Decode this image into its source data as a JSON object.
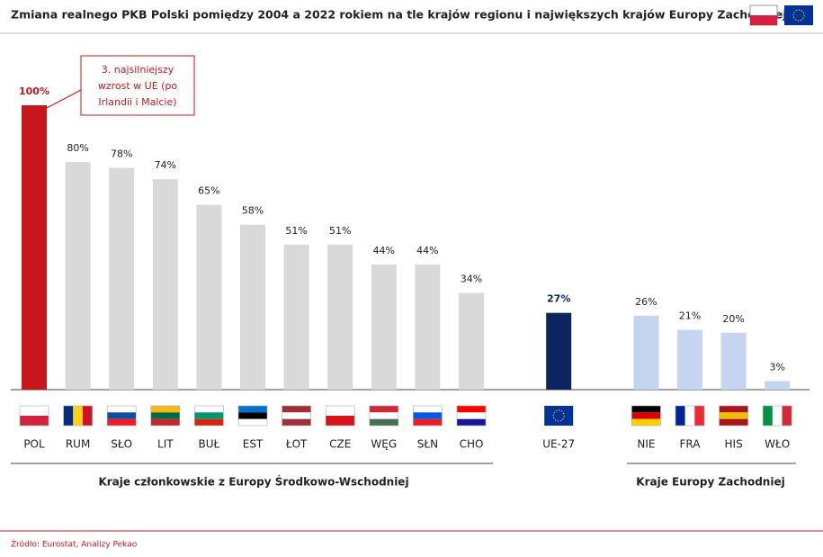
{
  "chart_data": {
    "type": "bar",
    "title": "Zmiana realnego PKB Polski pomiędzy 2004 a 2022 rokiem na tle krajów regionu i największych krajów Europy Zachodniej",
    "categories": [
      "POL",
      "RUM",
      "SŁO",
      "LIT",
      "BUŁ",
      "EST",
      "ŁOT",
      "CZE",
      "WĘG",
      "SŁN",
      "CHO",
      "UE-27",
      "NIE",
      "FRA",
      "HIS",
      "WŁO"
    ],
    "values": [
      100,
      80,
      78,
      74,
      65,
      58,
      51,
      51,
      44,
      44,
      34,
      27,
      26,
      21,
      20,
      3
    ],
    "value_labels": [
      "100%",
      "80%",
      "78%",
      "74%",
      "65%",
      "58%",
      "51%",
      "51%",
      "44%",
      "44%",
      "34%",
      "27%",
      "26%",
      "21%",
      "20%",
      "3%"
    ],
    "colors": [
      "#c8161d",
      "#d9d9d9",
      "#d9d9d9",
      "#d9d9d9",
      "#d9d9d9",
      "#d9d9d9",
      "#d9d9d9",
      "#d9d9d9",
      "#d9d9d9",
      "#d9d9d9",
      "#d9d9d9",
      "#0c2560",
      "#c5d5ef",
      "#c5d5ef",
      "#c5d5ef",
      "#c5d5ef"
    ],
    "groups": [
      "Kraje członkowskie z Europy Środkowo-Wschodniej",
      "Kraje Europy Zachodniej"
    ],
    "annotation": [
      "3. najsilniejszy",
      "wzrost w UE (po",
      "Irlandii i Malcie)"
    ],
    "source": "Źródło: Eurostat, Analizy Pekao"
  }
}
